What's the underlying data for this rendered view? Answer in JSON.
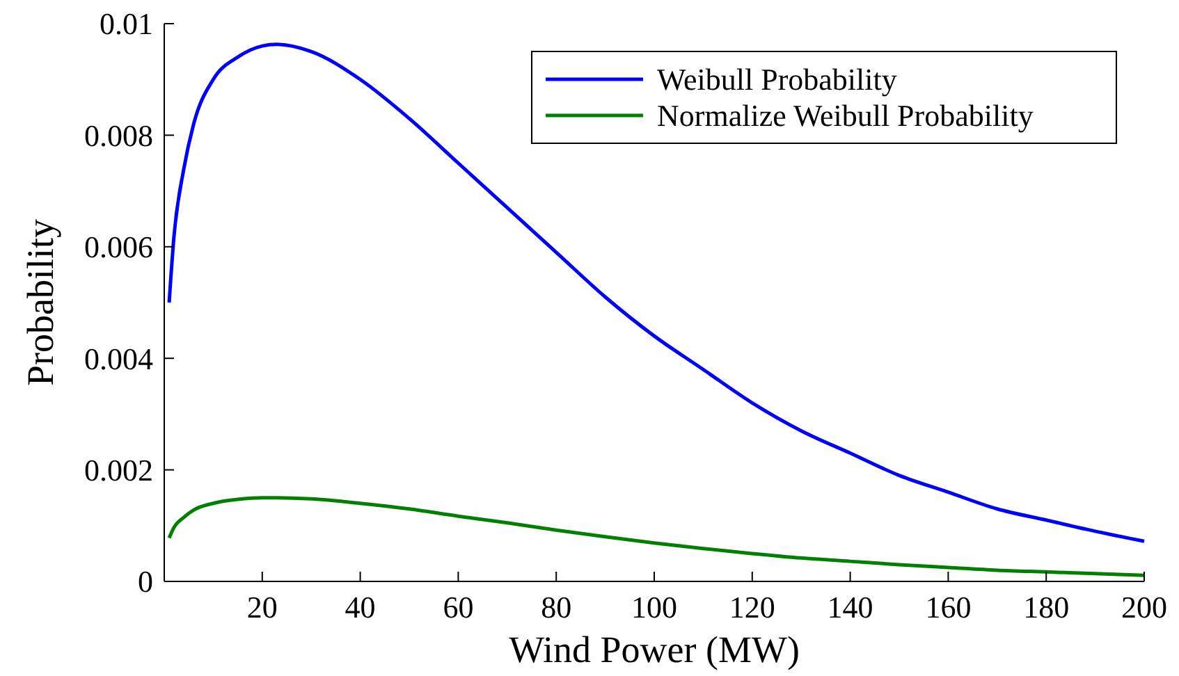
{
  "chart_data": {
    "type": "line",
    "xlabel": "Wind Power (MW)",
    "ylabel": "Probability",
    "xlim": [
      0,
      200
    ],
    "xticks": [
      20,
      40,
      60,
      80,
      100,
      120,
      140,
      160,
      180,
      200
    ],
    "ylim": [
      0,
      0.01
    ],
    "yticks": [
      0,
      0.002,
      0.004,
      0.006,
      0.008,
      0.01
    ],
    "grid": false,
    "legend": "top right",
    "marker": "none",
    "line_style": "solid",
    "x": [
      1,
      2,
      4,
      6,
      10,
      15,
      20,
      23,
      30,
      40,
      50,
      60,
      70,
      80,
      90,
      100,
      110,
      120,
      130,
      140,
      150,
      160,
      170,
      180,
      190,
      200
    ],
    "series": [
      {
        "name": "Weibull Probability",
        "color": "#0000ff",
        "values": [
          0.005,
          0.0062,
          0.0074,
          0.0082,
          0.009,
          0.0094,
          0.0096,
          0.00963,
          0.0095,
          0.009,
          0.0083,
          0.0075,
          0.0067,
          0.0059,
          0.0051,
          0.0044,
          0.0038,
          0.0032,
          0.0027,
          0.0023,
          0.0019,
          0.0016,
          0.0013,
          0.0011,
          0.0009,
          0.00072
        ]
      },
      {
        "name": "Normalize Weibull Probability",
        "color": "#008000",
        "values": [
          0.00078,
          0.00097,
          0.00115,
          0.00128,
          0.0014,
          0.00147,
          0.0015,
          0.0015,
          0.00148,
          0.0014,
          0.0013,
          0.00117,
          0.00105,
          0.00092,
          0.0008,
          0.00069,
          0.00059,
          0.0005,
          0.00042,
          0.00036,
          0.0003,
          0.00025,
          0.0002,
          0.00017,
          0.00014,
          0.00011
        ]
      }
    ]
  }
}
